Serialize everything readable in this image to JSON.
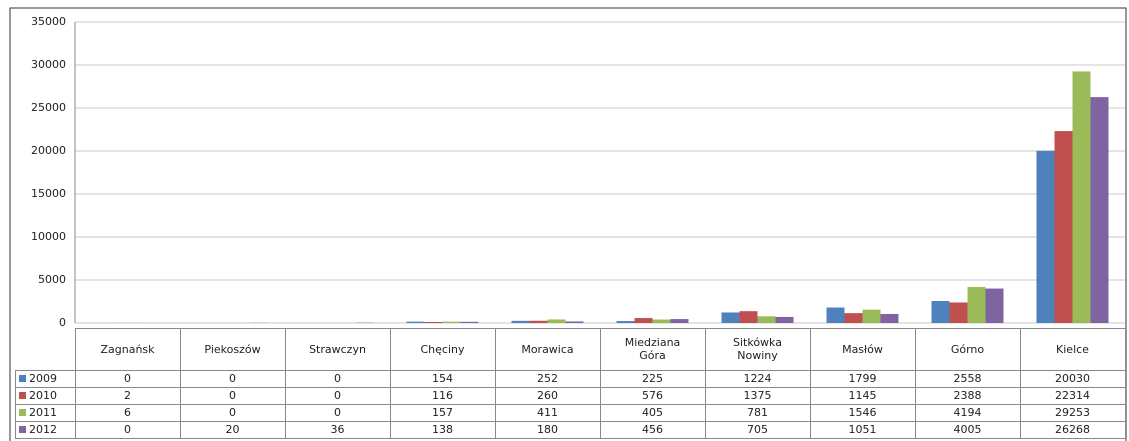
{
  "chart_data": {
    "type": "bar",
    "categories": [
      "Zagnańsk",
      "Piekoszów",
      "Strawczyn",
      "Chęciny",
      "Morawica",
      "Miedziana Góra",
      "Sitkówka Nowiny",
      "Masłów",
      "Górno",
      "Kielce"
    ],
    "series": [
      {
        "name": "2009",
        "color": "#4f81bd",
        "values": [
          0,
          0,
          0,
          154,
          252,
          225,
          1224,
          1799,
          2558,
          20030
        ]
      },
      {
        "name": "2010",
        "color": "#c0504d",
        "values": [
          2,
          0,
          0,
          116,
          260,
          576,
          1375,
          1145,
          2388,
          22314
        ]
      },
      {
        "name": "2011",
        "color": "#9bbb59",
        "values": [
          6,
          0,
          0,
          157,
          411,
          405,
          781,
          1546,
          4194,
          29253
        ]
      },
      {
        "name": "2012",
        "color": "#8064a2",
        "values": [
          0,
          20,
          36,
          138,
          180,
          456,
          705,
          1051,
          4005,
          26268
        ]
      }
    ],
    "ylim": [
      0,
      35000
    ],
    "yticks": [
      0,
      5000,
      10000,
      15000,
      20000,
      25000,
      30000,
      35000
    ],
    "grid": true
  }
}
